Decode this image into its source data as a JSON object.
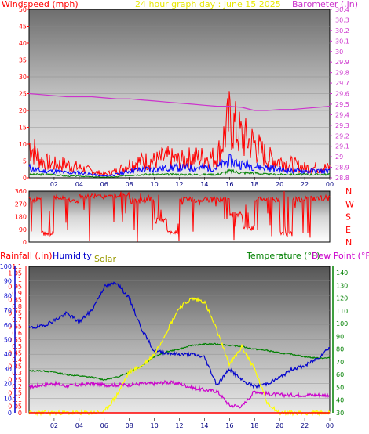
{
  "colors": {
    "wind": "#ff0000",
    "wind_avg": "#0000ff",
    "wind_green": "#008000",
    "baro": "#cc33cc",
    "title": "#e8e800",
    "dir": "#ff0000",
    "rain": "#ff0000",
    "humidity": "#0000cc",
    "solar": "#999900",
    "temp": "#008000",
    "dew": "#cc00cc"
  },
  "chart_data": [
    {
      "type": "line",
      "title": "24 hour graph day : June 15 2025",
      "ylabel_left": "Windspeed (mph)",
      "ylabel_right": "Barometer (.in)",
      "ylim_left": [
        0,
        50
      ],
      "ylim_right": [
        28.8,
        30.4
      ],
      "yticks_left": [
        "0",
        "5",
        "10",
        "15",
        "20",
        "25",
        "30",
        "35",
        "40",
        "45",
        "50"
      ],
      "yticks_right": [
        "28.8",
        "28.9",
        "29",
        "29.1",
        "29.2",
        "29.3",
        "29.4",
        "29.5",
        "29.6",
        "29.7",
        "29.8",
        "29.9",
        "30",
        "30.1",
        "30.2",
        "30.3",
        "30.4"
      ],
      "x_hours": [
        0,
        1,
        2,
        3,
        4,
        5,
        6,
        7,
        8,
        9,
        10,
        11,
        12,
        13,
        14,
        15,
        16,
        17,
        18,
        19,
        20,
        21,
        22,
        23,
        24
      ],
      "series": [
        {
          "name": "Windspeed",
          "values": [
            10,
            5,
            4,
            4,
            3,
            2,
            1,
            2,
            4,
            5,
            5,
            6,
            5,
            6,
            6,
            6,
            17,
            12,
            10,
            6,
            5,
            4,
            3,
            3,
            3
          ]
        },
        {
          "name": "Windspeed avg",
          "values": [
            3,
            2,
            2,
            1.5,
            1.5,
            1,
            0.5,
            1,
            2,
            2.5,
            2.5,
            3,
            3,
            3,
            3,
            3,
            5,
            4,
            3.5,
            3,
            2.5,
            2,
            2,
            2,
            2
          ]
        },
        {
          "name": "Gust green",
          "values": [
            1,
            1,
            1,
            0.5,
            0.5,
            0.3,
            0.2,
            0.3,
            0.8,
            1,
            1,
            1,
            1,
            1,
            1,
            1,
            2,
            1.5,
            1.5,
            1,
            1,
            1,
            1,
            1,
            1
          ]
        },
        {
          "name": "Barometer",
          "values": [
            29.6,
            29.59,
            29.58,
            29.57,
            29.57,
            29.57,
            29.56,
            29.55,
            29.55,
            29.54,
            29.53,
            29.52,
            29.51,
            29.5,
            29.49,
            29.48,
            29.48,
            29.47,
            29.44,
            29.44,
            29.45,
            29.45,
            29.46,
            29.47,
            29.48
          ]
        }
      ]
    },
    {
      "type": "line",
      "title": "",
      "ylabel_left": "",
      "ylim": [
        0,
        360
      ],
      "yticks_left": [
        "0",
        "90",
        "180",
        "270",
        "360"
      ],
      "compass": [
        "N",
        "W",
        "S",
        "E",
        "N"
      ],
      "series": [
        {
          "name": "Wind direction",
          "values": [
            300,
            60,
            320,
            290,
            320,
            320,
            320,
            330,
            290,
            300,
            150,
            70,
            300,
            300,
            300,
            300,
            200,
            100,
            300,
            300,
            60,
            300,
            310,
            310,
            310
          ]
        }
      ]
    },
    {
      "type": "line",
      "title": "",
      "ylabel_left": "Rainfall (.in)",
      "ylabel_left2": "Humidity",
      "ylabel_solar": "Solar",
      "ylabel_right": "Temperature (°F)",
      "ylabel_right2": "Dew Point (°F)",
      "yticks_rain": [
        "0",
        "0.05",
        "0.1",
        "0.15",
        "0.2",
        "0.25",
        "0.3",
        "0.35",
        "0.4",
        "0.45",
        "0.5",
        "0.55",
        "0.6",
        "0.65",
        "0.7",
        "0.75",
        "0.8",
        "0.85",
        "0.9",
        "0.95",
        "1",
        "1.05",
        "1.1"
      ],
      "yticks_hum": [
        "0",
        "10",
        "20",
        "30",
        "40",
        "50",
        "60",
        "70",
        "80",
        "90",
        "100"
      ],
      "yticks_temp": [
        "30",
        "40",
        "50",
        "60",
        "70",
        "80",
        "90",
        "100",
        "110",
        "120",
        "130",
        "140"
      ],
      "series": [
        {
          "name": "Humidity",
          "values": [
            58,
            59,
            63,
            68,
            62,
            70,
            86,
            89,
            78,
            57,
            42,
            41,
            40,
            40,
            38,
            19,
            30,
            22,
            18,
            20,
            24,
            30,
            32,
            37,
            45
          ]
        },
        {
          "name": "Temperature",
          "values": [
            63,
            63,
            62,
            60,
            59,
            58,
            56,
            58,
            62,
            67,
            74,
            78,
            80,
            83,
            84,
            84,
            83,
            82,
            80,
            79,
            77,
            76,
            74,
            73,
            73
          ]
        },
        {
          "name": "Dew Point",
          "values": [
            50,
            52,
            53,
            51,
            52,
            53,
            52,
            52,
            52,
            53,
            53,
            54,
            53,
            50,
            48,
            47,
            36,
            35,
            47,
            45,
            44,
            44,
            44,
            44,
            44
          ]
        },
        {
          "name": "Solar",
          "values": [
            0,
            0,
            0,
            0,
            0,
            0,
            5,
            120,
            280,
            320,
            400,
            560,
            720,
            780,
            760,
            560,
            330,
            450,
            300,
            70,
            0,
            0,
            0,
            0,
            0
          ]
        },
        {
          "name": "Rainfall",
          "values": [
            0,
            0,
            0,
            0,
            0,
            0,
            0,
            0,
            0,
            0,
            0,
            0,
            0,
            0,
            0,
            0,
            0,
            0,
            0,
            0,
            0,
            0,
            0,
            0,
            0
          ]
        }
      ]
    }
  ],
  "x_tick_labels": [
    "02",
    "04",
    "06",
    "08",
    "10",
    "12",
    "14",
    "16",
    "18",
    "20",
    "22",
    "00"
  ]
}
